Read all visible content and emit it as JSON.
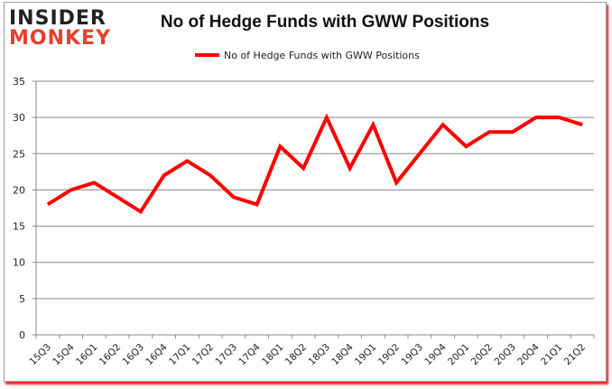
{
  "logo": {
    "line1": "INSIDER",
    "line2": "MONKEY"
  },
  "chart_data": {
    "type": "line",
    "title": "No of Hedge Funds with GWW Positions",
    "xlabel": "",
    "ylabel": "",
    "categories": [
      "15Q3",
      "15Q4",
      "16Q1",
      "16Q2",
      "16Q3",
      "16Q4",
      "17Q1",
      "17Q2",
      "17Q3",
      "17Q4",
      "18Q1",
      "18Q2",
      "18Q3",
      "18Q4",
      "19Q1",
      "19Q2",
      "19Q3",
      "19Q4",
      "20Q1",
      "20Q2",
      "20Q3",
      "20Q4",
      "21Q1",
      "21Q2"
    ],
    "series": [
      {
        "name": "No of Hedge Funds with GWW Positions",
        "color": "#ff0000",
        "values": [
          18,
          20,
          21,
          19,
          17,
          22,
          24,
          22,
          19,
          18,
          26,
          23,
          30,
          23,
          29,
          21,
          25,
          29,
          26,
          28,
          28,
          30,
          30,
          29
        ]
      }
    ],
    "ylim": [
      0,
      35
    ],
    "yticks": [
      0,
      5,
      10,
      15,
      20,
      25,
      30,
      35
    ],
    "grid": true,
    "legend": "top-center"
  }
}
